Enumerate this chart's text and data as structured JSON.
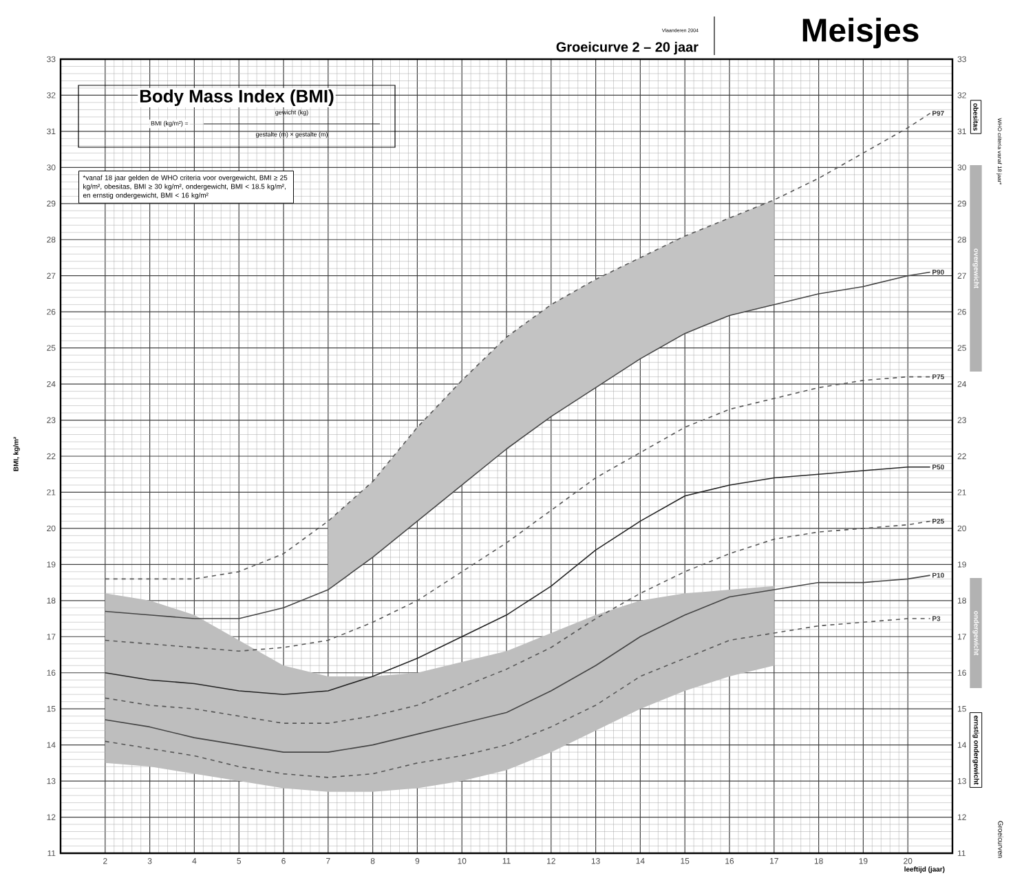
{
  "chart_data": {
    "type": "line",
    "title": "Meisjes",
    "subtitle": "Groeicurve 2 – 20 jaar",
    "xlabel": "leeftijd (jaar)",
    "ylabel": "BMI, kg/m²",
    "annotations": [
      "Vlaanderen 2004",
      "Body Mass Index (BMI)",
      "BMI (kg/m²) =",
      "gewicht (kg)",
      "gestalte (m) × gestalte (m)",
      "*vanaf 18 jaar gelden de WHO criteria voor overgewicht, BMI ≥ 25 kg/m², obesitas, BMI ≥ 30 kg/m², ondergewicht, BMI < 18.5 kg/m², en ernstig ondergewicht, BMI < 16 kg/m²",
      "WHO criteria vanaf 18 jaar*",
      "obesitas",
      "overgewicht",
      "ondergewicht",
      "ernstig ondergewicht",
      "Groeicurven"
    ],
    "x": [
      2,
      3,
      4,
      5,
      6,
      7,
      8,
      9,
      10,
      11,
      12,
      13,
      14,
      15,
      16,
      17,
      18,
      19,
      20,
      20.5
    ],
    "series": [
      {
        "name": "P97",
        "color": "#555555",
        "line_style": "dashed",
        "values": [
          18.6,
          18.6,
          18.6,
          18.8,
          19.3,
          20.2,
          21.3,
          22.8,
          24.1,
          25.3,
          26.2,
          26.9,
          27.5,
          28.1,
          28.6,
          29.1,
          29.7,
          30.4,
          31.1,
          31.5
        ],
        "lower": [
          null,
          null,
          null,
          null,
          null,
          18.3,
          19.2,
          20.2,
          21.2,
          22.2,
          23.1,
          23.9,
          24.7,
          25.4,
          25.9,
          26.2,
          null,
          null,
          null,
          null
        ],
        "upper": [
          null,
          null,
          null,
          null,
          null,
          20.2,
          21.3,
          22.8,
          24.1,
          25.3,
          26.2,
          26.9,
          27.5,
          28.1,
          28.6,
          29.1,
          null,
          null,
          null,
          null
        ]
      },
      {
        "name": "P90",
        "color": "#444444",
        "line_style": "solid",
        "values": [
          17.7,
          17.6,
          17.5,
          17.5,
          17.8,
          18.3,
          19.2,
          20.2,
          21.2,
          22.2,
          23.1,
          23.9,
          24.7,
          25.4,
          25.9,
          26.2,
          26.5,
          26.7,
          27.0,
          27.1
        ]
      },
      {
        "name": "P75",
        "color": "#555555",
        "line_style": "dashed",
        "values": [
          16.9,
          16.8,
          16.7,
          16.6,
          16.7,
          16.9,
          17.4,
          18.0,
          18.8,
          19.6,
          20.5,
          21.4,
          22.1,
          22.8,
          23.3,
          23.6,
          23.9,
          24.1,
          24.2,
          24.2
        ]
      },
      {
        "name": "P50",
        "color": "#222222",
        "line_style": "solid",
        "values": [
          16.0,
          15.8,
          15.7,
          15.5,
          15.4,
          15.5,
          15.9,
          16.4,
          17.0,
          17.6,
          18.4,
          19.4,
          20.2,
          20.9,
          21.2,
          21.4,
          21.5,
          21.6,
          21.7,
          21.7
        ]
      },
      {
        "name": "P25",
        "color": "#555555",
        "line_style": "dashed",
        "values": [
          15.3,
          15.1,
          15.0,
          14.8,
          14.6,
          14.6,
          14.8,
          15.1,
          15.6,
          16.1,
          16.7,
          17.5,
          18.2,
          18.8,
          19.3,
          19.7,
          19.9,
          20.0,
          20.1,
          20.2
        ]
      },
      {
        "name": "P10",
        "color": "#444444",
        "line_style": "solid",
        "values": [
          14.7,
          14.5,
          14.2,
          14.0,
          13.8,
          13.8,
          14.0,
          14.3,
          14.6,
          14.9,
          15.5,
          16.2,
          17.0,
          17.6,
          18.1,
          18.3,
          18.5,
          18.5,
          18.6,
          18.7
        ],
        "lower": [
          13.5,
          13.4,
          13.2,
          13.0,
          12.8,
          12.7,
          12.7,
          12.8,
          13.0,
          13.3,
          13.8,
          14.4,
          15.0,
          15.5,
          15.9,
          16.2,
          null,
          null,
          null,
          null
        ],
        "upper": [
          18.2,
          18.0,
          17.6,
          16.9,
          16.2,
          15.9,
          15.9,
          16.0,
          16.3,
          16.6,
          17.1,
          17.6,
          18.0,
          18.2,
          18.3,
          18.4,
          null,
          null,
          null,
          null
        ]
      },
      {
        "name": "P3",
        "color": "#555555",
        "line_style": "dashed",
        "values": [
          14.1,
          13.9,
          13.7,
          13.4,
          13.2,
          13.1,
          13.2,
          13.5,
          13.7,
          14.0,
          14.5,
          15.1,
          15.9,
          16.4,
          16.9,
          17.1,
          17.3,
          17.4,
          17.5,
          17.5
        ]
      }
    ],
    "xlim": [
      1,
      21
    ],
    "xticks": [
      2,
      3,
      4,
      5,
      6,
      7,
      8,
      9,
      10,
      11,
      12,
      13,
      14,
      15,
      16,
      17,
      18,
      19,
      20
    ],
    "ylim": [
      11,
      33
    ],
    "yticks": [
      11,
      12,
      13,
      14,
      15,
      16,
      17,
      18,
      19,
      20,
      21,
      22,
      23,
      24,
      25,
      26,
      27,
      28,
      29,
      30,
      31,
      32,
      33
    ],
    "y2lim": [
      11,
      33
    ],
    "y2ticks": [
      11,
      12,
      13,
      14,
      15,
      16,
      17,
      18,
      19,
      20,
      21,
      22,
      23,
      24,
      25,
      26,
      27,
      28,
      29,
      30,
      31,
      32,
      33
    ],
    "grid": true,
    "marker": "none"
  }
}
